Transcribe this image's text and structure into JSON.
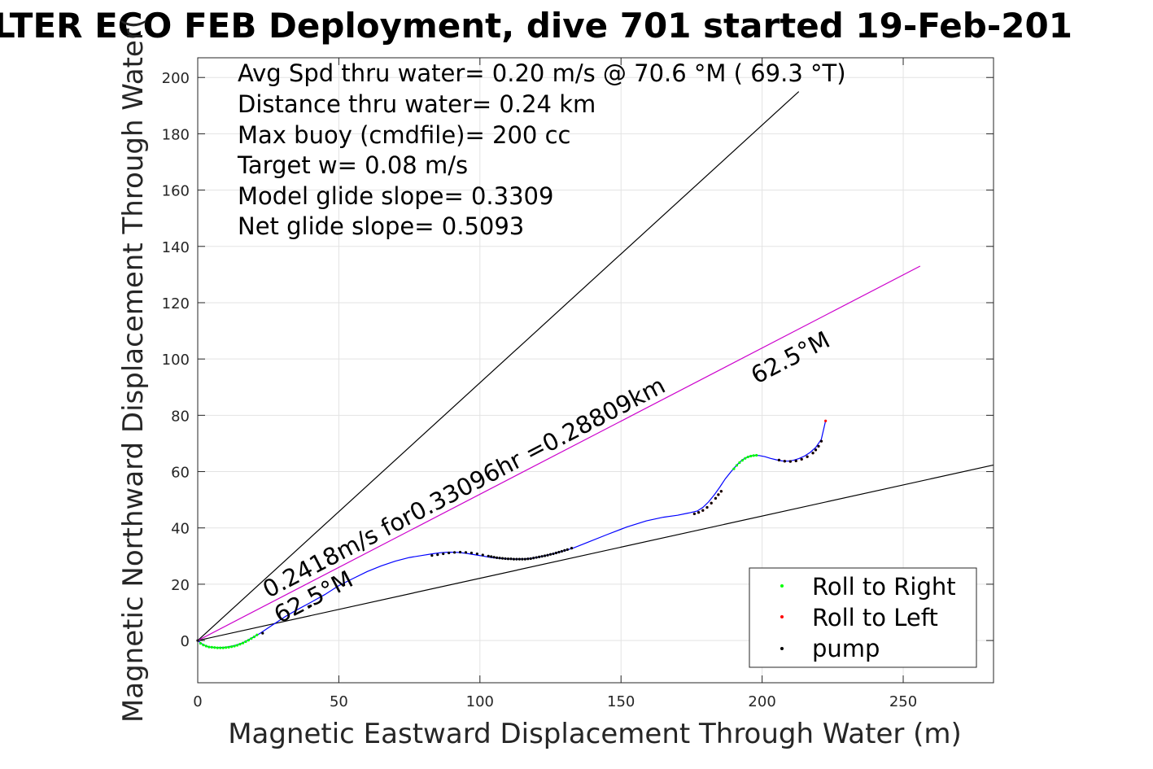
{
  "chart_data": {
    "type": "scatter",
    "title": "LTER ECO FEB Deployment, dive 701 started 19-Feb-201",
    "xlabel": "Magnetic Eastward Displacement Through Water (m)",
    "ylabel": "Magnetic Northward Displacement Through Water(",
    "xlim": [
      0,
      282
    ],
    "ylim": [
      -15,
      207
    ],
    "xticks": [
      0,
      50,
      100,
      150,
      200,
      250
    ],
    "yticks": [
      0,
      20,
      40,
      60,
      80,
      100,
      120,
      140,
      160,
      180,
      200
    ],
    "grid": true,
    "legend_position": "bottom-right",
    "info_lines": [
      "Avg Spd thru water=  0.20 m/s @  70.6 °M ( 69.3 °T)",
      "Distance thru water=  0.24 km",
      "Max buoy (cmdfile)= 200 cc",
      "Target w= 0.08 m/s",
      "Model glide slope= 0.3309",
      "Net glide slope= 0.5093"
    ],
    "annotations": [
      {
        "text": "0.2418m/s for0.33096hr =0.28809km",
        "x": 25,
        "y": 15,
        "angle_deg": 27.5
      },
      {
        "text": "62.5°M",
        "x": 29,
        "y": 6,
        "angle_deg": 27.5
      },
      {
        "text": "62.5°M",
        "x": 198,
        "y": 91,
        "angle_deg": 27.5
      }
    ],
    "lines": [
      {
        "x": [
          0,
          213
        ],
        "y": [
          0,
          195
        ],
        "color": "#000000"
      },
      {
        "x": [
          0,
          285
        ],
        "y": [
          0,
          63
        ],
        "color": "#000000"
      },
      {
        "x": [
          0,
          256
        ],
        "y": [
          0,
          133
        ],
        "color": "#cc00cc"
      }
    ],
    "track": {
      "color": "#0000ff",
      "x": [
        0,
        2,
        4,
        7,
        10,
        13,
        16,
        19,
        22,
        25,
        28,
        31,
        35,
        40,
        45,
        50,
        55,
        60,
        65,
        70,
        75,
        80,
        83,
        86,
        89,
        92,
        95,
        98,
        101,
        104,
        107,
        110,
        113,
        116,
        119,
        122,
        125,
        128,
        131,
        133,
        138,
        145,
        152,
        159,
        165,
        170,
        174,
        177,
        179,
        181,
        183,
        185,
        187,
        189,
        191,
        193,
        195,
        197,
        199,
        201,
        203,
        205,
        207,
        209,
        211,
        213,
        215,
        217,
        219,
        221,
        222.5
      ],
      "y": [
        0,
        -1.5,
        -2.3,
        -2.5,
        -2.4,
        -1.8,
        -0.8,
        0.8,
        2.5,
        4.5,
        6.5,
        8.5,
        10.8,
        13.5,
        16.3,
        19.5,
        22.0,
        24.5,
        26.5,
        28.2,
        29.5,
        30.3,
        30.8,
        31.2,
        31.4,
        31.3,
        31.0,
        30.5,
        30.0,
        29.5,
        29.2,
        29.0,
        28.9,
        29.0,
        29.3,
        29.9,
        30.6,
        31.4,
        32.2,
        32.8,
        34.8,
        37.6,
        40.3,
        42.5,
        43.8,
        44.5,
        45.3,
        46.0,
        47.3,
        49.2,
        51.7,
        54.5,
        57.5,
        60.0,
        62.3,
        64.2,
        65.3,
        65.8,
        65.7,
        65.3,
        64.7,
        64.2,
        63.8,
        63.7,
        64.0,
        64.6,
        65.5,
        66.8,
        68.6,
        71.5,
        78.0
      ]
    },
    "series": [
      {
        "name": "Roll to Right",
        "color": "#00ff00",
        "x": [
          1,
          2,
          3,
          4,
          5,
          6,
          7,
          8,
          9,
          10,
          11,
          12,
          13,
          14,
          15,
          16,
          17,
          18,
          19,
          20,
          21,
          190,
          191,
          192,
          193,
          194,
          195,
          196,
          197,
          198
        ],
        "y": [
          -1.0,
          -1.6,
          -2.0,
          -2.3,
          -2.4,
          -2.5,
          -2.6,
          -2.6,
          -2.6,
          -2.5,
          -2.4,
          -2.2,
          -2.0,
          -1.7,
          -1.3,
          -0.9,
          -0.4,
          0.1,
          0.7,
          1.3,
          2.0,
          61.0,
          62.2,
          63.2,
          64.0,
          64.7,
          65.2,
          65.5,
          65.7,
          65.8
        ]
      },
      {
        "name": "Roll to Left",
        "color": "#ff0000",
        "x": [
          176,
          177.5,
          179,
          180.5,
          182,
          183.5,
          184.5,
          185.5,
          206,
          208,
          210,
          212,
          214,
          216,
          218,
          219,
          220,
          221,
          222.5
        ],
        "y": [
          45.0,
          45.5,
          46.2,
          47.3,
          48.8,
          50.5,
          51.8,
          53.0,
          64.1,
          63.7,
          63.6,
          63.8,
          64.4,
          65.3,
          66.6,
          67.7,
          69.0,
          70.8,
          78.0
        ]
      },
      {
        "name": "pump",
        "color": "#000000",
        "x": [
          0,
          23,
          40,
          83,
          85,
          87,
          89,
          91,
          93,
          95,
          97,
          99,
          101,
          103,
          104,
          105,
          106,
          107,
          108,
          109,
          110,
          111,
          112,
          113,
          114,
          115,
          116,
          117,
          118,
          119,
          120,
          121,
          122,
          123,
          124,
          125,
          126,
          127,
          128,
          129,
          130,
          131,
          132.5,
          176,
          177.5,
          179,
          180.5,
          182,
          183.5,
          184.5,
          185.5,
          206,
          208,
          210,
          212,
          214,
          216,
          218,
          219,
          220,
          221
        ],
        "y": [
          0,
          2.6,
          12.3,
          30.2,
          30.5,
          30.8,
          31.1,
          31.3,
          31.4,
          31.3,
          31.1,
          30.8,
          30.4,
          30.0,
          29.8,
          29.6,
          29.4,
          29.3,
          29.2,
          29.1,
          29.0,
          29.0,
          28.9,
          28.9,
          28.9,
          28.9,
          28.9,
          29.0,
          29.1,
          29.3,
          29.5,
          29.7,
          29.9,
          30.1,
          30.3,
          30.6,
          30.8,
          31.1,
          31.4,
          31.7,
          32.0,
          32.3,
          32.8,
          45.0,
          45.5,
          46.2,
          47.3,
          48.8,
          50.5,
          51.8,
          53.0,
          64.1,
          63.7,
          63.6,
          63.8,
          64.4,
          65.3,
          66.6,
          67.7,
          69.0,
          70.8
        ]
      }
    ]
  }
}
